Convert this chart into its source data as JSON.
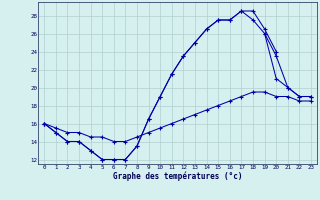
{
  "xlabel": "Graphe des températures (°c)",
  "background_color": "#d6efef",
  "grid_color": "#b0d0d0",
  "line_color": "#0000aa",
  "ylim": [
    11.5,
    29.5
  ],
  "xlim": [
    -0.5,
    23.5
  ],
  "yticks": [
    12,
    14,
    16,
    18,
    20,
    22,
    24,
    26,
    28
  ],
  "xticks": [
    0,
    1,
    2,
    3,
    4,
    5,
    6,
    7,
    8,
    9,
    10,
    11,
    12,
    13,
    14,
    15,
    16,
    17,
    18,
    19,
    20,
    21,
    22,
    23
  ],
  "curve1_x": [
    0,
    1,
    2,
    3,
    4,
    5,
    6,
    7,
    8,
    9,
    10,
    11,
    12,
    13,
    14,
    15,
    16,
    17,
    18,
    19,
    20,
    21,
    22,
    23
  ],
  "curve1_y": [
    16,
    15,
    14,
    14,
    13,
    12,
    12,
    12,
    13.5,
    16.5,
    19,
    21.5,
    23.5,
    25,
    26.5,
    27.5,
    27.5,
    28.5,
    27.5,
    26,
    21,
    20,
    19,
    19
  ],
  "curve2_x": [
    0,
    1,
    2,
    3,
    4,
    5,
    6,
    7,
    8,
    9,
    10,
    11,
    12,
    13,
    14,
    15,
    16,
    17,
    18,
    19,
    20
  ],
  "curve2_y": [
    16,
    15,
    14,
    14,
    13,
    12,
    12,
    12,
    13.5,
    16.5,
    19,
    21.5,
    23.5,
    25,
    26.5,
    27.5,
    27.5,
    28.5,
    28.5,
    26.5,
    24
  ],
  "curve3_x": [
    0,
    1,
    2,
    3,
    4,
    5,
    6,
    7,
    8,
    9,
    10,
    11,
    12,
    13,
    14,
    15,
    16,
    17,
    18,
    19,
    20,
    21,
    22,
    23
  ],
  "curve3_y": [
    16,
    15.5,
    15,
    15,
    14.5,
    14.5,
    14,
    14,
    14.5,
    15,
    15.5,
    16,
    16.5,
    17,
    17.5,
    18,
    18.5,
    19,
    19.5,
    19.5,
    19,
    19,
    18.5,
    18.5
  ],
  "curve4_x": [
    19,
    20,
    21,
    22,
    23
  ],
  "curve4_y": [
    26,
    23.5,
    20,
    19,
    19
  ]
}
